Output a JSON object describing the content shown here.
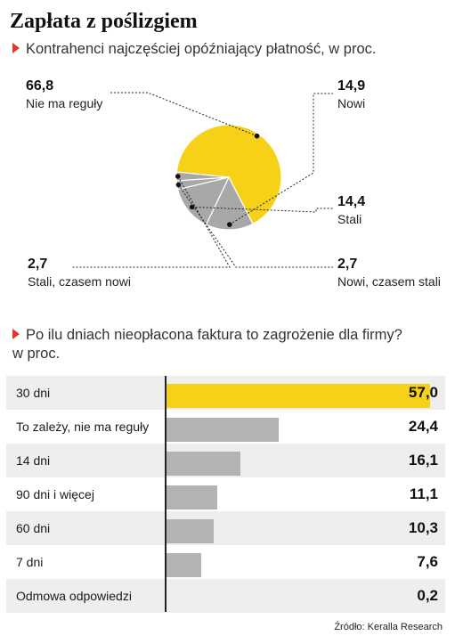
{
  "title": "Zapłata z poślizgiem",
  "subtitle1": "Kontrahenci najczęściej opóźniający płatność, w proc.",
  "subtitle2_line1": "Po ilu dniach nieopłacona faktura to zagrożenie dla firmy?",
  "subtitle2_line2": "w proc.",
  "source": "Źródło: Keralla Research",
  "colors": {
    "highlight": "#f7d117",
    "gray": "#b3b3b3",
    "marker": "#e5362b"
  },
  "chart_data": [
    {
      "type": "pie",
      "title": "Kontrahenci najczęściej opóźniający płatność, w proc.",
      "slices": [
        {
          "label": "Nie ma reguły",
          "value": 66.8,
          "display": "66,8",
          "color": "#f7d117"
        },
        {
          "label": "Nowi",
          "value": 14.9,
          "display": "14,9",
          "color": "#a8a8a8"
        },
        {
          "label": "Stali",
          "value": 14.4,
          "display": "14,4",
          "color": "#a8a8a8"
        },
        {
          "label": "Nowi, czasem stali",
          "value": 2.7,
          "display": "2,7",
          "color": "#a8a8a8"
        },
        {
          "label": "Stali, czasem nowi",
          "value": 2.7,
          "display": "2,7",
          "color": "#a8a8a8"
        }
      ]
    },
    {
      "type": "bar",
      "orientation": "horizontal",
      "title": "Po ilu dniach nieopłacona faktura to zagrożenie dla firmy? w proc.",
      "categories": [
        "30 dni",
        "To zależy, nie ma reguły",
        "14 dni",
        "90 dni i więcej",
        "60 dni",
        "7 dni",
        "Odmowa odpowiedzi"
      ],
      "values": [
        57.0,
        24.4,
        16.1,
        11.1,
        10.3,
        7.6,
        0.2
      ],
      "display": [
        "57,0",
        "24,4",
        "16,1",
        "11,1",
        "10,3",
        "7,6",
        "0,2"
      ],
      "xlim": [
        0,
        57.0
      ],
      "highlight_index": 0
    }
  ]
}
